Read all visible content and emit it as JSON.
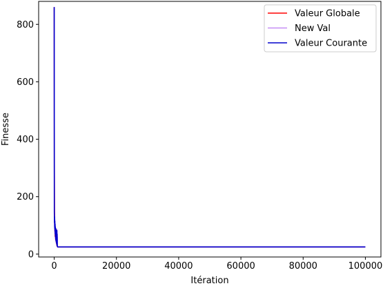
{
  "chart_data": {
    "type": "line",
    "title": "",
    "xlabel": "Itération",
    "ylabel": "Finesse",
    "xlim": [
      -5000,
      105000
    ],
    "ylim": [
      -10,
      880
    ],
    "xticks": [
      0,
      20000,
      40000,
      60000,
      80000,
      100000
    ],
    "xtick_labels": [
      "0",
      "20000",
      "40000",
      "60000",
      "80000",
      "100000"
    ],
    "yticks": [
      0,
      200,
      400,
      600,
      800
    ],
    "ytick_labels": [
      "0",
      "200",
      "400",
      "600",
      "800"
    ],
    "grid": false,
    "legend_position": "top-right",
    "series": [
      {
        "name": "Valeur Globale",
        "color": "#ff0000",
        "x": [
          0,
          50,
          100,
          150,
          200,
          250,
          300,
          400,
          500,
          600,
          700,
          800,
          900,
          1000,
          1100,
          100000
        ],
        "y": [
          860,
          300,
          150,
          110,
          90,
          75,
          65,
          55,
          50,
          45,
          40,
          35,
          30,
          27,
          25,
          25
        ]
      },
      {
        "name": "New Val",
        "color": "#c58cf5",
        "x": [
          0,
          60,
          120,
          200,
          260,
          320,
          400,
          480,
          560,
          620,
          700,
          760,
          820,
          900,
          960,
          1000,
          1050,
          1100,
          100000
        ],
        "y": [
          860,
          140,
          95,
          120,
          70,
          100,
          55,
          90,
          45,
          80,
          40,
          75,
          35,
          85,
          30,
          60,
          28,
          25,
          25
        ]
      },
      {
        "name": "Valeur Courante",
        "color": "#0000cc",
        "x": [
          0,
          40,
          80,
          120,
          160,
          200,
          240,
          280,
          320,
          360,
          400,
          450,
          500,
          550,
          600,
          650,
          700,
          750,
          800,
          850,
          900,
          950,
          1000,
          1050,
          1100,
          100000
        ],
        "y": [
          860,
          150,
          110,
          130,
          90,
          115,
          80,
          105,
          70,
          95,
          60,
          90,
          50,
          88,
          45,
          85,
          40,
          80,
          35,
          82,
          30,
          70,
          28,
          26,
          25,
          25
        ]
      }
    ]
  }
}
